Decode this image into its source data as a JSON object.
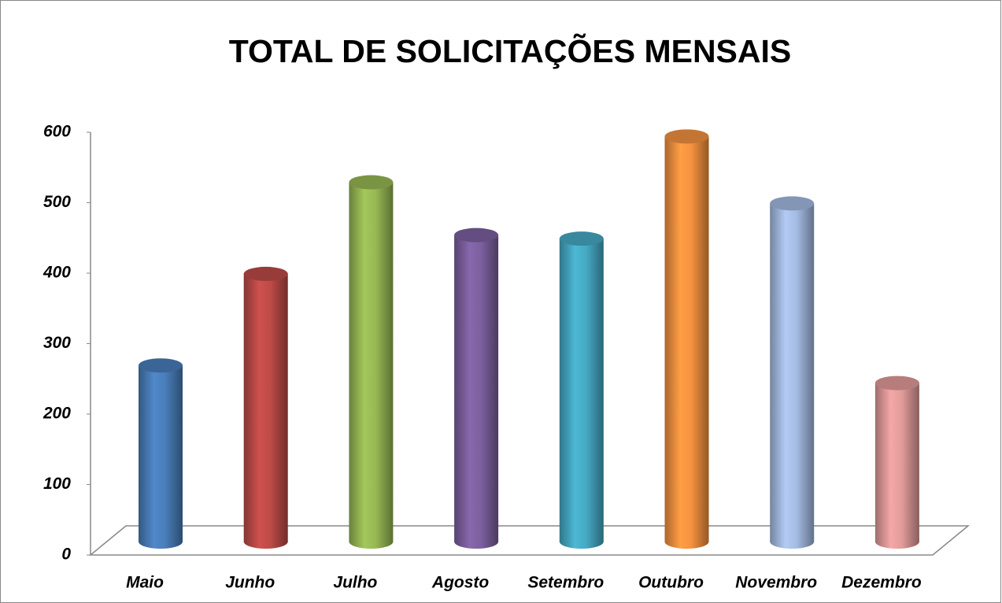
{
  "chart_data": {
    "type": "bar",
    "title": "TOTAL DE SOLICITAÇÕES MENSAIS",
    "categories": [
      "Maio",
      "Junho",
      "Julho",
      "Agosto",
      "Setembro",
      "Outubro",
      "Novembro",
      "Dezembro"
    ],
    "values": [
      250,
      380,
      510,
      435,
      430,
      575,
      480,
      225
    ],
    "colors": [
      "#4a7ebb",
      "#be4b48",
      "#98b954",
      "#7d60a0",
      "#46aac5",
      "#f69240",
      "#a5bce3",
      "#e39c9b"
    ],
    "ylim": [
      0,
      600
    ],
    "yticks": [
      0,
      100,
      200,
      300,
      400,
      500,
      600
    ]
  }
}
